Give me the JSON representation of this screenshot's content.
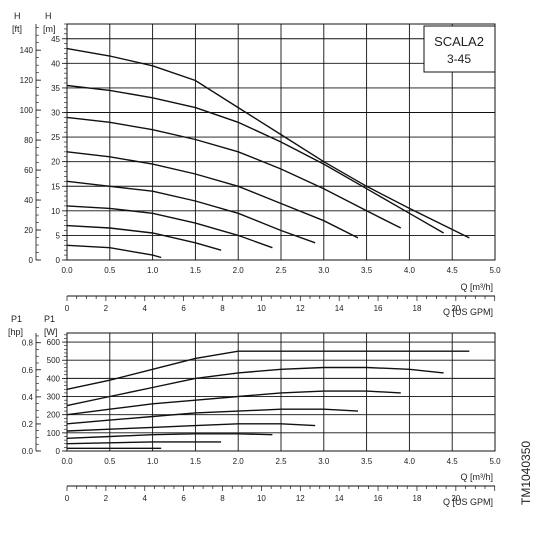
{
  "chart_data": [
    {
      "type": "line",
      "panel": "head",
      "title": "SCALA2",
      "subtitle": "3-45",
      "xlabel": "Q [m³/h]",
      "ylabel_left": "H",
      "ylabel_left_unit": "[ft]",
      "ylabel_right": "H",
      "ylabel_right_unit": "[m]",
      "xlim": [
        0,
        5.0
      ],
      "ylim": [
        0,
        48
      ],
      "grid": true,
      "x_ticks": [
        "0.0",
        "0.5",
        "1.0",
        "1.5",
        "2.0",
        "2.5",
        "3.0",
        "3.5",
        "4.0",
        "4.5",
        "5.0"
      ],
      "y_ticks_m": [
        "0",
        "5",
        "10",
        "15",
        "20",
        "25",
        "30",
        "35",
        "40",
        "45"
      ],
      "y_ticks_ft": [
        "0",
        "20",
        "40",
        "60",
        "80",
        "100",
        "120",
        "140"
      ],
      "secondary_x_label": "Q [US GPM]",
      "secondary_x_ticks": [
        "0",
        "2",
        "4",
        "6",
        "8",
        "10",
        "12",
        "14",
        "16",
        "18",
        "20"
      ],
      "series": [
        {
          "points": [
            [
              0.0,
              43.0
            ],
            [
              0.5,
              41.5
            ],
            [
              1.0,
              39.5
            ],
            [
              1.5,
              36.5
            ],
            [
              2.0,
              31.0
            ],
            [
              2.5,
              25.5
            ],
            [
              3.0,
              20.0
            ],
            [
              3.5,
              15.0
            ],
            [
              4.0,
              10.5
            ],
            [
              4.7,
              4.5
            ]
          ]
        },
        {
          "points": [
            [
              0.0,
              35.5
            ],
            [
              0.5,
              34.5
            ],
            [
              1.0,
              33.0
            ],
            [
              1.5,
              31.0
            ],
            [
              2.0,
              28.0
            ],
            [
              2.5,
              24.0
            ],
            [
              3.0,
              19.5
            ],
            [
              3.5,
              14.5
            ],
            [
              4.0,
              9.5
            ],
            [
              4.4,
              5.5
            ]
          ]
        },
        {
          "points": [
            [
              0.0,
              29.0
            ],
            [
              0.5,
              28.0
            ],
            [
              1.0,
              26.5
            ],
            [
              1.5,
              24.5
            ],
            [
              2.0,
              22.0
            ],
            [
              2.5,
              18.5
            ],
            [
              3.0,
              14.5
            ],
            [
              3.5,
              10.0
            ],
            [
              3.9,
              6.5
            ]
          ]
        },
        {
          "points": [
            [
              0.0,
              22.0
            ],
            [
              0.5,
              21.0
            ],
            [
              1.0,
              19.5
            ],
            [
              1.5,
              17.5
            ],
            [
              2.0,
              15.0
            ],
            [
              2.5,
              11.5
            ],
            [
              3.0,
              8.0
            ],
            [
              3.4,
              4.5
            ]
          ]
        },
        {
          "points": [
            [
              0.0,
              16.0
            ],
            [
              0.5,
              15.0
            ],
            [
              1.0,
              14.0
            ],
            [
              1.5,
              12.0
            ],
            [
              2.0,
              9.5
            ],
            [
              2.5,
              6.0
            ],
            [
              2.9,
              3.5
            ]
          ]
        },
        {
          "points": [
            [
              0.0,
              11.0
            ],
            [
              0.5,
              10.5
            ],
            [
              1.0,
              9.5
            ],
            [
              1.5,
              7.5
            ],
            [
              2.0,
              5.0
            ],
            [
              2.4,
              2.5
            ]
          ]
        },
        {
          "points": [
            [
              0.0,
              7.0
            ],
            [
              0.5,
              6.5
            ],
            [
              1.0,
              5.5
            ],
            [
              1.5,
              3.5
            ],
            [
              1.8,
              2.0
            ]
          ]
        },
        {
          "points": [
            [
              0.0,
              3.0
            ],
            [
              0.5,
              2.5
            ],
            [
              1.0,
              1.0
            ],
            [
              1.1,
              0.5
            ]
          ]
        }
      ]
    },
    {
      "type": "line",
      "panel": "power",
      "xlabel": "Q [m³/h]",
      "ylabel_left": "P1",
      "ylabel_left_unit": "[hp]",
      "ylabel_right": "P1",
      "ylabel_right_unit": "[W]",
      "xlim": [
        0,
        5.0
      ],
      "ylim": [
        0,
        650
      ],
      "grid": true,
      "x_ticks": [
        "0.0",
        "0.5",
        "1.0",
        "1.5",
        "2.0",
        "2.5",
        "3.0",
        "3.5",
        "4.0",
        "4.5",
        "5.0"
      ],
      "y_ticks_w": [
        "0",
        "100",
        "200",
        "300",
        "400",
        "500",
        "600"
      ],
      "y_ticks_hp": [
        "0.0",
        "0.2",
        "0.4",
        "0.6",
        "0.8"
      ],
      "secondary_x_label": "Q [US GPM]",
      "secondary_x_ticks": [
        "0",
        "2",
        "4",
        "6",
        "8",
        "10",
        "12",
        "14",
        "16",
        "18",
        "20"
      ],
      "series": [
        {
          "points": [
            [
              0.0,
              340
            ],
            [
              0.5,
              390
            ],
            [
              1.0,
              450
            ],
            [
              1.5,
              510
            ],
            [
              2.0,
              550
            ],
            [
              2.5,
              550
            ],
            [
              3.0,
              550
            ],
            [
              3.5,
              550
            ],
            [
              4.0,
              550
            ],
            [
              4.7,
              550
            ]
          ]
        },
        {
          "points": [
            [
              0.0,
              250
            ],
            [
              0.5,
              300
            ],
            [
              1.0,
              350
            ],
            [
              1.5,
              400
            ],
            [
              2.0,
              430
            ],
            [
              2.5,
              450
            ],
            [
              3.0,
              460
            ],
            [
              3.5,
              460
            ],
            [
              4.0,
              450
            ],
            [
              4.4,
              430
            ]
          ]
        },
        {
          "points": [
            [
              0.0,
              200
            ],
            [
              0.5,
              230
            ],
            [
              1.0,
              260
            ],
            [
              1.5,
              280
            ],
            [
              2.0,
              300
            ],
            [
              2.5,
              320
            ],
            [
              3.0,
              330
            ],
            [
              3.5,
              330
            ],
            [
              3.9,
              320
            ]
          ]
        },
        {
          "points": [
            [
              0.0,
              150
            ],
            [
              0.5,
              170
            ],
            [
              1.0,
              190
            ],
            [
              1.5,
              210
            ],
            [
              2.0,
              220
            ],
            [
              2.5,
              230
            ],
            [
              3.0,
              230
            ],
            [
              3.4,
              220
            ]
          ]
        },
        {
          "points": [
            [
              0.0,
              110
            ],
            [
              0.5,
              120
            ],
            [
              1.0,
              130
            ],
            [
              1.5,
              140
            ],
            [
              2.0,
              150
            ],
            [
              2.5,
              150
            ],
            [
              2.9,
              140
            ]
          ]
        },
        {
          "points": [
            [
              0.0,
              70
            ],
            [
              0.5,
              80
            ],
            [
              1.0,
              90
            ],
            [
              1.5,
              95
            ],
            [
              2.0,
              95
            ],
            [
              2.4,
              90
            ]
          ]
        },
        {
          "points": [
            [
              0.0,
              40
            ],
            [
              0.5,
              45
            ],
            [
              1.0,
              50
            ],
            [
              1.5,
              50
            ],
            [
              1.8,
              50
            ]
          ]
        },
        {
          "points": [
            [
              0.0,
              15
            ],
            [
              0.5,
              15
            ],
            [
              1.0,
              15
            ],
            [
              1.1,
              15
            ]
          ]
        }
      ]
    }
  ],
  "figure_code": "TM1040350"
}
